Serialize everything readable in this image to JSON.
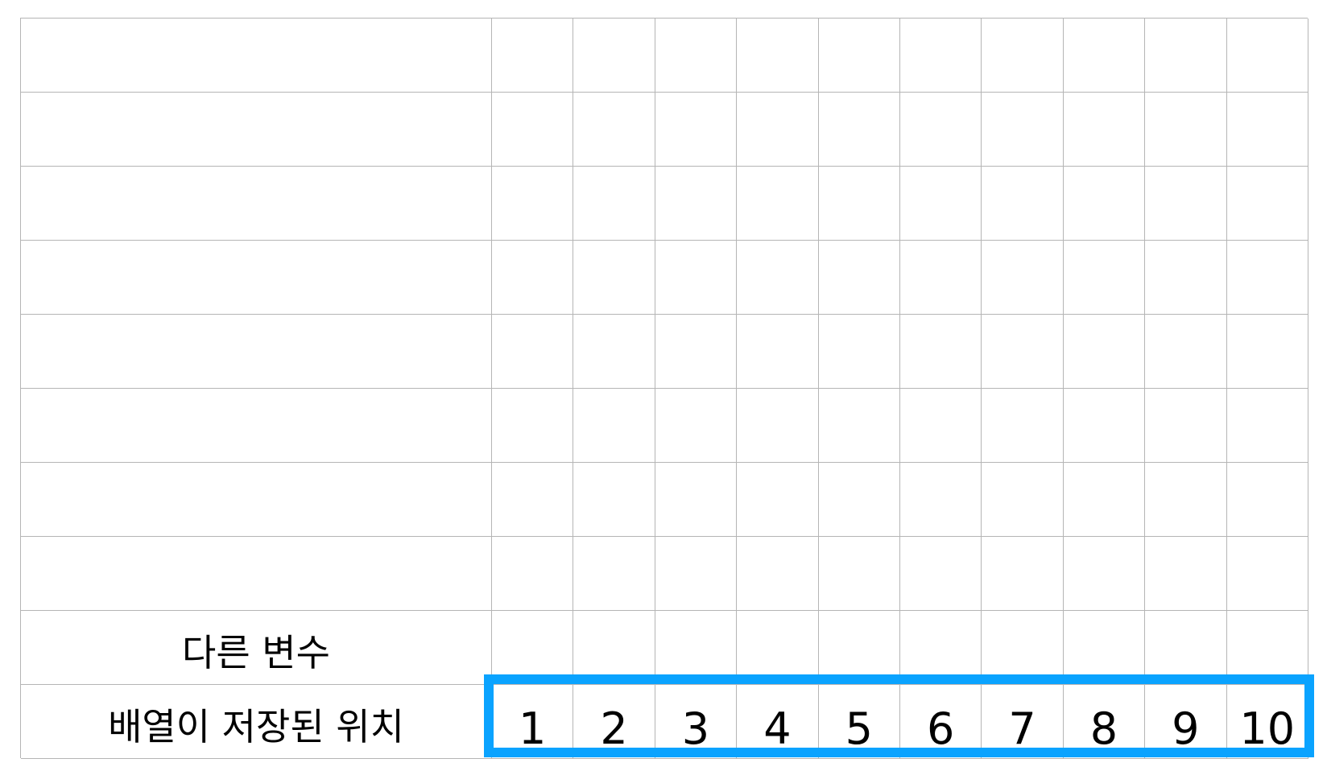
{
  "rows": {
    "other_variable_label": "다른 변수",
    "array_location_label": "배열이 저장된 위치"
  },
  "array_positions": [
    "1",
    "2",
    "3",
    "4",
    "5",
    "6",
    "7",
    "8",
    "9",
    "10"
  ],
  "colors": {
    "grid_line": "#b5b5b5",
    "highlight_border": "#0aa3ff",
    "text": "#000000"
  }
}
